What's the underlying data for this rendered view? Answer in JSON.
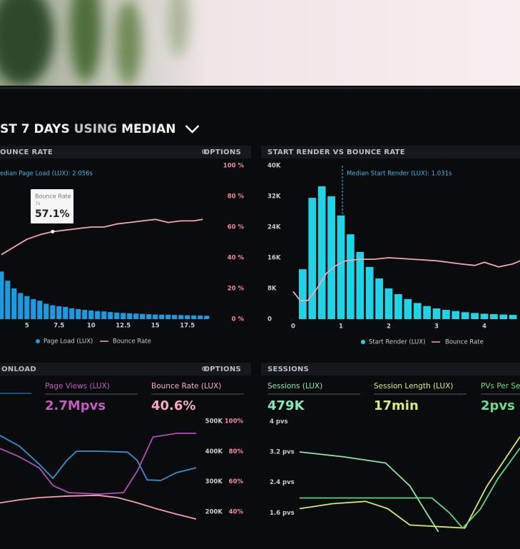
{
  "header": {
    "title": [
      "ST",
      "7 DAYS",
      "USING",
      "MEDIAN"
    ]
  },
  "chart_data": [
    {
      "type": "bar",
      "title": "OUNCE RATE",
      "options": "OPTIONS",
      "annotation": "edian Page Load (LUX): 2.056s",
      "tooltip": {
        "title": "Bounce Rate",
        "subtitle": "7s",
        "value": "57.1%"
      },
      "xlim": [
        2.9,
        19.85
      ],
      "xticks": [
        5,
        7.5,
        10,
        12.5,
        15,
        17.5
      ],
      "ylim": [
        0,
        100
      ],
      "y2lim": [
        0,
        100
      ],
      "y2ticks": [
        {
          "value": 0,
          "label": "0 %"
        },
        {
          "value": 20,
          "label": "20 %"
        },
        {
          "value": 40,
          "label": "40 %"
        },
        {
          "value": 60,
          "label": "60 %"
        },
        {
          "value": 80,
          "label": "80 %"
        },
        {
          "value": 100,
          "label": "100 %"
        }
      ],
      "series": [
        {
          "name": "Page Load (LUX)",
          "color": "#1e9be0",
          "x": [
            3,
            3.5,
            4,
            4.5,
            5,
            5.5,
            6,
            6.5,
            7,
            7.5,
            8,
            8.5,
            9,
            9.5,
            10,
            10.5,
            11,
            11.5,
            12,
            12.5,
            13,
            13.5,
            14,
            14.5,
            15,
            15.5,
            16,
            16.5,
            17,
            17.5,
            18,
            18.5,
            19
          ],
          "values": [
            31,
            25,
            20,
            17,
            15,
            13,
            12,
            10,
            9,
            8.4,
            8,
            7,
            6.5,
            6,
            5.6,
            5.2,
            5,
            4.6,
            4.3,
            4,
            3.8,
            3.6,
            3.4,
            3.2,
            3,
            2.9,
            2.8,
            2.7,
            2.6,
            2.5,
            2.4,
            2.3,
            2.2
          ]
        },
        {
          "name": "Bounce Rate",
          "color": "#f3a6b4",
          "type": "line",
          "axis": "y2",
          "x": [
            3,
            4,
            5,
            6,
            7,
            8,
            9,
            10,
            11,
            12,
            13,
            14,
            15,
            16,
            17,
            18,
            18.7
          ],
          "values": [
            42,
            47,
            52,
            55,
            57,
            58,
            59,
            60,
            60,
            62,
            63,
            64,
            65,
            63,
            64,
            64,
            65
          ]
        }
      ]
    },
    {
      "type": "bar",
      "title": "START RENDER VS BOUNCE RATE",
      "annotation": "Median Start Render (LUX): 1.031s",
      "median": 1.031,
      "xlim": [
        -0.313,
        4.746
      ],
      "xticks": [
        0,
        1,
        2,
        3,
        4
      ],
      "ylim": [
        0,
        40000
      ],
      "yticks": [
        0,
        {
          "value": 8000,
          "label": "8K"
        },
        {
          "value": 16000,
          "label": "16K"
        },
        {
          "value": 24000,
          "label": "24K"
        },
        {
          "value": 32000,
          "label": "32K"
        },
        {
          "value": 40000,
          "label": "40K"
        }
      ],
      "y2lim": [
        0,
        100
      ],
      "series": [
        {
          "name": "Start Render (LUX)",
          "color": "#22d3e6",
          "x": [
            0.2,
            0.4,
            0.6,
            0.8,
            1,
            1.2,
            1.4,
            1.6,
            1.8,
            2,
            2.2,
            2.4,
            2.6,
            2.8,
            3,
            3.2,
            3.4,
            3.6,
            3.8,
            4,
            4.2,
            4.4,
            4.6
          ],
          "values": [
            13000,
            31600,
            34600,
            32000,
            27000,
            22100,
            17500,
            13600,
            10600,
            8000,
            6500,
            5200,
            4200,
            3400,
            2800,
            2400,
            2100,
            1800,
            1600,
            1400,
            1300,
            1200,
            1100
          ]
        },
        {
          "name": "Bounce Rate",
          "color": "#f3a6b4",
          "type": "line",
          "axis": "y2",
          "x": [
            0,
            0.15,
            0.3,
            0.5,
            0.7,
            0.9,
            1.1,
            1.4,
            1.7,
            2,
            2.5,
            3,
            3.5,
            3.8,
            4,
            4.3,
            4.6,
            4.75
          ],
          "values": [
            18,
            12,
            12,
            20,
            30,
            35,
            38,
            39,
            39,
            40,
            39,
            38,
            36,
            35,
            37,
            34,
            36,
            38
          ]
        }
      ]
    },
    {
      "type": "line",
      "title": "ONLOAD",
      "options": "OPTIONS",
      "kpis": [
        {
          "label": "Page Views (LUX)",
          "value": "2.7Mpvs",
          "color": "#c25cc4"
        },
        {
          "label": "Bounce Rate (LUX)",
          "value": "40.6%",
          "color": "#f6a9c2"
        }
      ],
      "xlim": [
        0,
        10
      ],
      "ylim": [
        134000,
        512000
      ],
      "y2lim": [
        26.8,
        102.4
      ],
      "yticks": [
        {
          "value": 200000,
          "label": "200K"
        },
        {
          "value": 300000,
          "label": "300K"
        },
        {
          "value": 400000,
          "label": "400K"
        },
        {
          "value": 500000,
          "label": "500K"
        }
      ],
      "y2ticks": [
        {
          "value": 40,
          "label": "40%"
        },
        {
          "value": 60,
          "label": "60%"
        },
        {
          "value": 80,
          "label": "80%"
        },
        {
          "value": 100,
          "label": "100%"
        }
      ],
      "series": [
        {
          "color": "#3a8fd0",
          "x": [
            0,
            1,
            2,
            2.7,
            3.4,
            3.9,
            5,
            6.5,
            7,
            7.5,
            8.2,
            9,
            10
          ],
          "values": [
            453000,
            417000,
            358000,
            311000,
            370000,
            401000,
            401000,
            398000,
            370000,
            306000,
            304000,
            330000,
            346000
          ]
        },
        {
          "color": "#b04fb5",
          "x": [
            0,
            1,
            2,
            2.7,
            3.5,
            5,
            6.3,
            7,
            7.8,
            9,
            10
          ],
          "values": [
            410000,
            382000,
            346000,
            287000,
            264000,
            259000,
            264000,
            335000,
            448000,
            460000,
            460000
          ]
        },
        {
          "color": "#f0a0b4",
          "axis": "y2",
          "x": [
            0,
            1,
            2,
            3.5,
            5,
            6,
            7,
            8,
            9,
            10
          ],
          "values": [
            46,
            48,
            49.5,
            50.5,
            51,
            49.5,
            46,
            42,
            38.5,
            35.3
          ]
        }
      ]
    },
    {
      "type": "line",
      "title": "SESSIONS",
      "kpis": [
        {
          "label": "Sessions (LUX)",
          "value": "479K",
          "color": "#86e6bb"
        },
        {
          "label": "Session Length (LUX)",
          "value": "17min",
          "color": "#d6ea78"
        },
        {
          "label": "PVs Per Se",
          "value": "2pvs",
          "color": "#6edb8f"
        }
      ],
      "xlim": [
        0,
        10
      ],
      "ylim": [
        1.1,
        4.1
      ],
      "yticks": [
        {
          "value": 1.6,
          "label": "1.6 pvs"
        },
        {
          "value": 2.4,
          "label": "2.4 pvs"
        },
        {
          "value": 3.2,
          "label": "3.2 pvs"
        },
        {
          "value": 4,
          "label": "4 pvs"
        }
      ],
      "series": [
        {
          "color": "#8ee3b0",
          "x": [
            0,
            2,
            3.9,
            5,
            5.8,
            6.3
          ],
          "values": [
            3.2,
            3.07,
            2.91,
            2.31,
            1.56,
            1.1
          ]
        },
        {
          "color": "#d4e86a",
          "x": [
            0,
            1.5,
            3,
            4,
            5,
            7.5,
            8.5,
            10
          ],
          "values": [
            1.71,
            1.84,
            1.9,
            1.71,
            1.28,
            1.2,
            2.3,
            3.6
          ]
        },
        {
          "color": "#5ed18a",
          "x": [
            0,
            3,
            6,
            6.8,
            7.4,
            8.2,
            9,
            10
          ],
          "values": [
            1.99,
            1.99,
            1.99,
            1.6,
            1.2,
            1.7,
            2.5,
            3.3
          ]
        }
      ]
    }
  ]
}
